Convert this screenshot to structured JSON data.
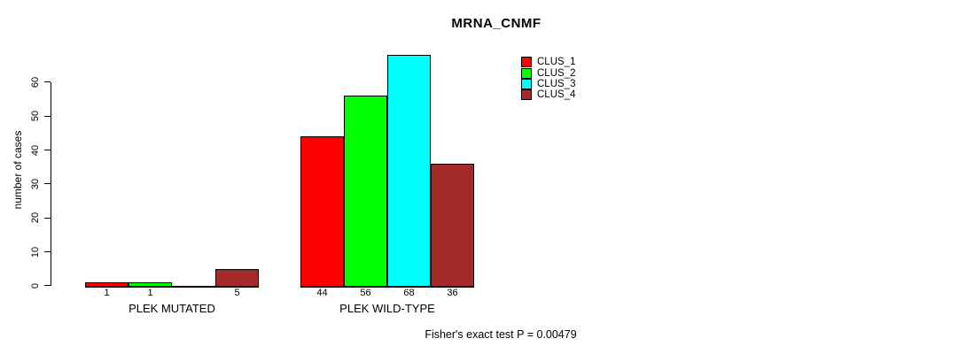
{
  "title": "MRNA_CNMF",
  "y_axis": {
    "label": "number of cases",
    "ticks": [
      0,
      10,
      20,
      30,
      40,
      50,
      60
    ]
  },
  "legend": {
    "items": [
      {
        "label": "CLUS_1",
        "color": "#FF0000"
      },
      {
        "label": "CLUS_2",
        "color": "#00FF00"
      },
      {
        "label": "CLUS_3",
        "color": "#00FFFF"
      },
      {
        "label": "CLUS_4",
        "color": "#A52A2A"
      }
    ]
  },
  "footer": "Fisher's exact test P = 0.00479",
  "chart_data": {
    "type": "bar",
    "title": "MRNA_CNMF",
    "ylabel": "number of cases",
    "ylim": [
      0,
      68
    ],
    "y_ticks": [
      0,
      10,
      20,
      30,
      40,
      50,
      60
    ],
    "grid": false,
    "legend_position": "upper-right",
    "categories": [
      "PLEK MUTATED",
      "PLEK WILD-TYPE"
    ],
    "series": [
      {
        "name": "CLUS_1",
        "color": "#FF0000",
        "values": [
          1,
          44
        ]
      },
      {
        "name": "CLUS_2",
        "color": "#00FF00",
        "values": [
          1,
          56
        ]
      },
      {
        "name": "CLUS_3",
        "color": "#00FFFF",
        "values": [
          0,
          68
        ]
      },
      {
        "name": "CLUS_4",
        "color": "#A52A2A",
        "values": [
          5,
          36
        ]
      }
    ],
    "bar_value_labels": [
      [
        "1",
        "1",
        "",
        "5"
      ],
      [
        "44",
        "56",
        "68",
        "36"
      ]
    ],
    "annotation": "Fisher's exact test P = 0.00479"
  }
}
